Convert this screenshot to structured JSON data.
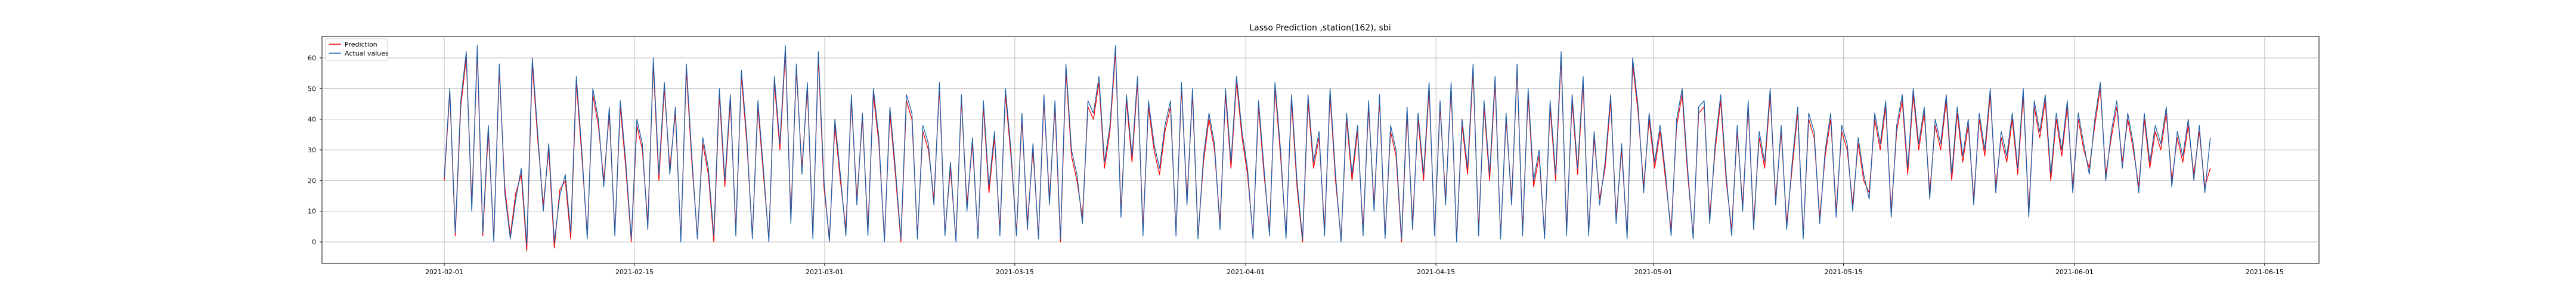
{
  "chart_data": {
    "type": "line",
    "title": "Lasso Prediction ,station(162), sbi",
    "xlabel": "",
    "ylabel": "",
    "xlim": [
      "2021-01-23",
      "2021-06-19"
    ],
    "ylim": [
      -7,
      67
    ],
    "x_ticks": [
      "2021-02-01",
      "2021-02-15",
      "2021-03-01",
      "2021-03-15",
      "2021-04-01",
      "2021-04-15",
      "2021-05-01",
      "2021-05-15",
      "2021-06-01",
      "2021-06-15"
    ],
    "y_ticks": [
      0,
      10,
      20,
      30,
      40,
      50,
      60
    ],
    "grid": true,
    "legend_position": "top-left",
    "x_start": "2021-02-01",
    "x_end": "2021-06-11",
    "series": [
      {
        "name": "Prediction",
        "color": "#ff0000",
        "values": [
          20,
          49,
          2,
          44,
          60,
          12,
          62,
          2,
          36,
          1,
          56,
          18,
          2,
          16,
          22,
          -3,
          58,
          33,
          12,
          30,
          -2,
          17,
          20,
          1,
          52,
          28,
          2,
          48,
          38,
          20,
          42,
          3,
          44,
          24,
          0,
          38,
          30,
          6,
          58,
          20,
          50,
          24,
          42,
          1,
          56,
          26,
          2,
          32,
          22,
          0,
          48,
          18,
          46,
          4,
          54,
          32,
          2,
          44,
          22,
          1,
          52,
          30,
          62,
          8,
          56,
          24,
          50,
          2,
          60,
          18,
          1,
          38,
          20,
          4,
          46,
          14,
          40,
          4,
          48,
          32,
          1,
          42,
          22,
          0,
          46,
          40,
          2,
          36,
          30,
          14,
          50,
          3,
          24,
          1,
          46,
          12,
          32,
          2,
          44,
          16,
          34,
          4,
          48,
          28,
          3,
          40,
          6,
          30,
          2,
          46,
          14,
          44,
          0,
          56,
          28,
          20,
          8,
          44,
          40,
          52,
          24,
          36,
          62,
          10,
          46,
          26,
          52,
          4,
          44,
          30,
          22,
          36,
          44,
          3,
          50,
          14,
          48,
          2,
          26,
          40,
          30,
          6,
          48,
          24,
          52,
          34,
          22,
          2,
          44,
          22,
          4,
          50,
          28,
          2,
          46,
          18,
          0,
          46,
          24,
          34,
          4,
          48,
          20,
          1,
          40,
          20,
          36,
          4,
          44,
          12,
          46,
          2,
          36,
          28,
          0,
          42,
          6,
          40,
          20,
          50,
          3,
          44,
          14,
          50,
          1,
          38,
          22,
          56,
          4,
          44,
          20,
          52,
          2,
          40,
          14,
          56,
          4,
          48,
          18,
          28,
          2,
          44,
          20,
          60,
          4,
          46,
          22,
          52,
          3,
          34,
          14,
          24,
          46,
          8,
          30,
          2,
          58,
          42,
          18,
          40,
          24,
          36,
          20,
          4,
          38,
          48,
          22,
          2,
          42,
          44,
          8,
          30,
          46,
          20,
          4,
          36,
          12,
          44,
          6,
          34,
          24,
          48,
          14,
          36,
          6,
          24,
          42,
          2,
          40,
          34,
          8,
          28,
          40,
          10,
          36,
          30,
          12,
          32,
          20,
          16,
          40,
          30,
          44,
          10,
          36,
          46,
          22,
          48,
          30,
          42,
          16,
          38,
          30,
          46,
          20,
          42,
          26,
          38,
          14,
          40,
          28,
          48,
          18,
          34,
          26,
          40,
          22,
          48,
          10,
          44,
          34,
          46,
          20,
          40,
          28,
          44,
          18,
          40,
          30,
          24,
          38,
          50,
          22,
          34,
          44,
          26,
          40,
          30,
          18,
          40,
          24,
          36,
          30,
          42,
          20,
          34,
          26,
          38,
          22,
          36,
          18,
          24
        ]
      },
      {
        "name": "Actual values",
        "color": "#1f5fa8",
        "values": [
          21,
          50,
          3,
          46,
          62,
          10,
          64,
          3,
          38,
          0,
          58,
          16,
          1,
          14,
          24,
          -1,
          60,
          35,
          10,
          32,
          0,
          15,
          22,
          3,
          54,
          30,
          1,
          50,
          40,
          18,
          44,
          2,
          46,
          26,
          1,
          40,
          32,
          4,
          60,
          22,
          52,
          22,
          44,
          0,
          58,
          28,
          1,
          34,
          24,
          2,
          50,
          20,
          48,
          2,
          56,
          34,
          1,
          46,
          24,
          0,
          54,
          32,
          64,
          6,
          58,
          22,
          52,
          1,
          62,
          20,
          0,
          40,
          22,
          2,
          48,
          12,
          42,
          2,
          50,
          34,
          0,
          44,
          24,
          1,
          48,
          42,
          1,
          38,
          32,
          12,
          52,
          2,
          26,
          0,
          48,
          10,
          34,
          1,
          46,
          18,
          36,
          2,
          50,
          30,
          2,
          42,
          4,
          32,
          1,
          48,
          12,
          46,
          1,
          58,
          30,
          22,
          6,
          46,
          42,
          54,
          26,
          38,
          64,
          8,
          48,
          28,
          54,
          2,
          46,
          32,
          24,
          38,
          46,
          2,
          52,
          12,
          50,
          1,
          28,
          42,
          32,
          4,
          50,
          26,
          54,
          36,
          24,
          1,
          46,
          24,
          2,
          52,
          30,
          1,
          48,
          20,
          1,
          48,
          26,
          36,
          2,
          50,
          22,
          0,
          42,
          22,
          38,
          2,
          46,
          10,
          48,
          1,
          38,
          30,
          1,
          44,
          4,
          42,
          22,
          52,
          2,
          46,
          12,
          52,
          0,
          40,
          24,
          58,
          2,
          46,
          22,
          54,
          1,
          42,
          12,
          58,
          2,
          50,
          20,
          30,
          1,
          46,
          22,
          62,
          2,
          48,
          24,
          54,
          2,
          36,
          12,
          26,
          48,
          6,
          32,
          1,
          60,
          44,
          16,
          42,
          26,
          38,
          22,
          2,
          40,
          50,
          24,
          1,
          44,
          46,
          6,
          32,
          48,
          22,
          2,
          38,
          10,
          46,
          4,
          36,
          26,
          50,
          12,
          38,
          4,
          26,
          44,
          1,
          42,
          36,
          6,
          30,
          42,
          8,
          38,
          32,
          10,
          34,
          22,
          14,
          42,
          32,
          46,
          8,
          38,
          48,
          24,
          50,
          32,
          44,
          14,
          40,
          32,
          48,
          22,
          44,
          28,
          40,
          12,
          42,
          30,
          50,
          16,
          36,
          28,
          42,
          24,
          50,
          8,
          46,
          36,
          48,
          22,
          42,
          30,
          46,
          16,
          42,
          32,
          22,
          40,
          52,
          20,
          36,
          46,
          24,
          42,
          32,
          16,
          42,
          26,
          38,
          32,
          44,
          18,
          36,
          28,
          40,
          20,
          38,
          16,
          34
        ]
      }
    ]
  }
}
